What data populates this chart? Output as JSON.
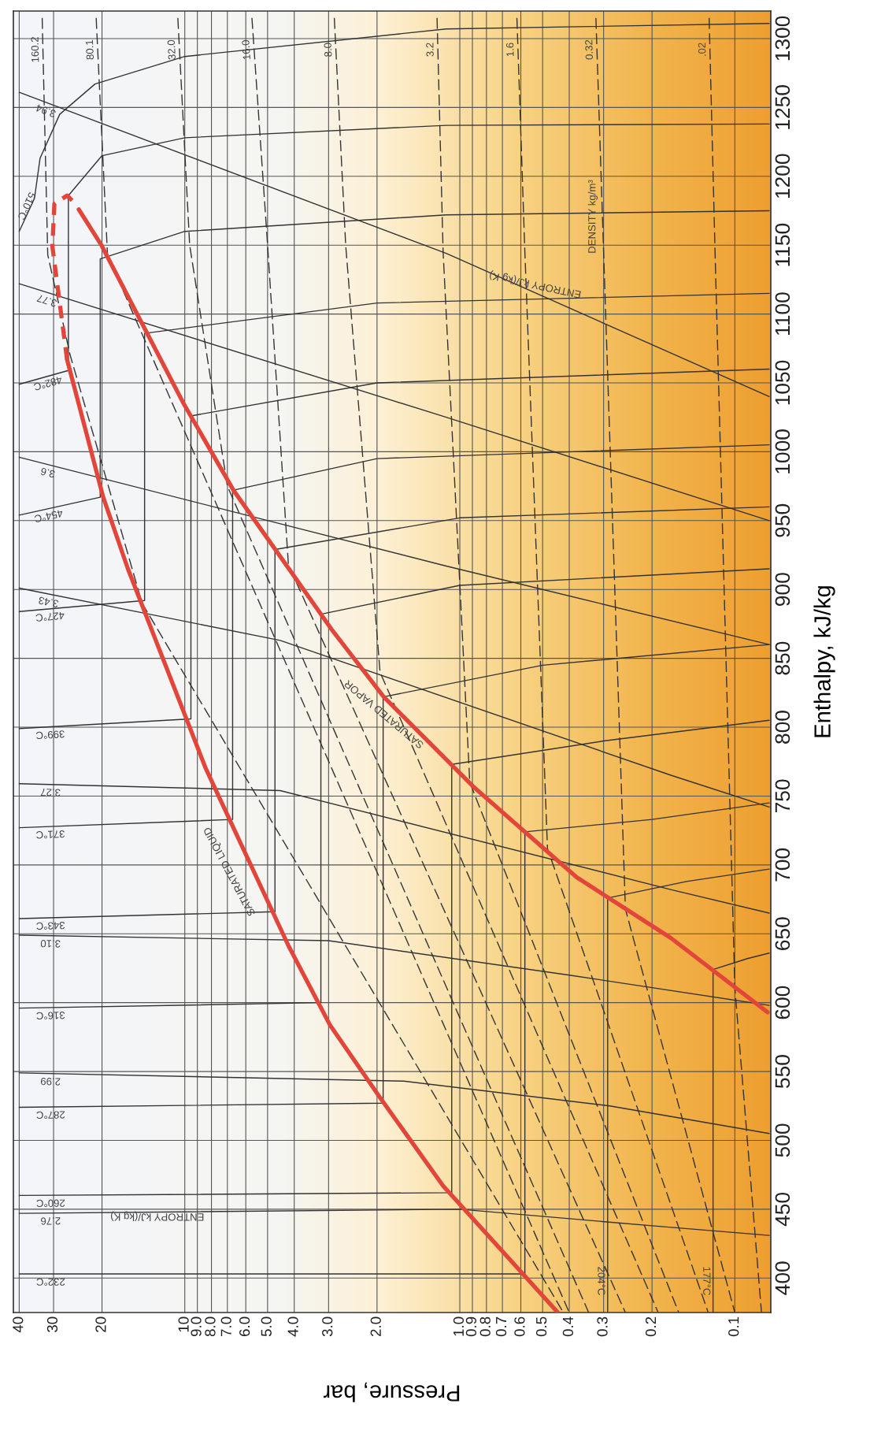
{
  "chart_data": {
    "type": "line",
    "xlabel": "Pressure, bar",
    "ylabel": "Enthalpy, kJ/kg",
    "log": "x",
    "grid": true,
    "xlim": [
      42,
      0.074
    ],
    "ylim": [
      375,
      1320
    ],
    "xticks": [
      40,
      30,
      20,
      10,
      {
        "value": 9,
        "label": "9.0"
      },
      {
        "value": 8,
        "label": "8.0"
      },
      {
        "value": 7,
        "label": "7.0"
      },
      {
        "value": 6,
        "label": "6.0"
      },
      {
        "value": 5,
        "label": "5.0"
      },
      {
        "value": 4,
        "label": "4.0"
      },
      {
        "value": 3,
        "label": "3.0"
      },
      {
        "value": 2,
        "label": "2.0"
      },
      {
        "value": 1,
        "label": "1.0"
      },
      0.9,
      0.8,
      0.7,
      0.6,
      0.5,
      0.4,
      0.3,
      0.2,
      0.1
    ],
    "yticks": [
      400,
      450,
      500,
      550,
      600,
      650,
      700,
      750,
      800,
      850,
      900,
      950,
      1000,
      1050,
      1100,
      1150,
      1200,
      1250,
      1300
    ],
    "series": [
      {
        "color": "#e2453a",
        "line_style": "solid",
        "x": [
          0.44,
          1.15,
          1.95,
          2.97,
          4.19,
          8.39,
          16.1,
          19.8,
          26.8
        ],
        "values": [
          375,
          467,
          531,
          584,
          641,
          770,
          915,
          967,
          1067
        ]
      },
      {
        "color": "#e2453a",
        "line_style": "dashed",
        "x": [
          26.8,
          30.3,
          29.8,
          26.8,
          24.6
        ],
        "values": [
          1067,
          1149,
          1180,
          1186,
          1179
        ]
      },
      {
        "color": "#e2453a",
        "line_style": "solid",
        "x": [
          24.3,
          20.1,
          10.1,
          6.65,
          2.9,
          1.89,
          0.895,
          0.376,
          0.171,
          0.076
        ],
        "values": [
          1176,
          1150,
          1035,
          972,
          870,
          822,
          757,
          691,
          647,
          593
        ]
      },
      {
        "name": "232°C",
        "color": "#333333",
        "line_style": "solid",
        "x": [
          40,
          0.58,
          0.58,
          0.2,
          0.075
        ],
        "values": [
          403,
          403,
          724,
          733,
          745
        ]
      },
      {
        "name": "260°C",
        "color": "#333333",
        "line_style": "solid",
        "x": [
          40,
          1.07,
          1.07,
          0.3,
          0.075
        ],
        "values": [
          460,
          462,
          773,
          790,
          805
        ]
      },
      {
        "name": "287°C",
        "color": "#333333",
        "line_style": "solid",
        "x": [
          40,
          1.9,
          1.9,
          0.5,
          0.075
        ],
        "values": [
          524,
          527,
          822,
          845,
          860
        ]
      },
      {
        "name": "316°C",
        "color": "#333333",
        "line_style": "solid",
        "x": [
          40,
          3.2,
          3.2,
          1.0,
          0.075
        ],
        "values": [
          596,
          600,
          882,
          903,
          915
        ]
      },
      {
        "name": "343°C",
        "color": "#333333",
        "line_style": "solid",
        "x": [
          40,
          4.7,
          4.7,
          1.0,
          0.075
        ],
        "values": [
          661,
          666,
          929,
          952,
          960
        ]
      },
      {
        "name": "371°C",
        "color": "#333333",
        "line_style": "solid",
        "x": [
          40,
          6.7,
          6.7,
          2.0,
          0.075
        ],
        "values": [
          727,
          733,
          972,
          995,
          1005
        ]
      },
      {
        "name": "399°C",
        "color": "#333333",
        "line_style": "solid",
        "x": [
          40,
          9.5,
          9.5,
          2.0,
          0.075
        ],
        "values": [
          799,
          806,
          1026,
          1050,
          1060
        ]
      },
      {
        "name": "427°C",
        "color": "#333333",
        "line_style": "solid",
        "x": [
          40,
          14,
          14,
          2.0,
          0.075
        ],
        "values": [
          884,
          892,
          1086,
          1108,
          1115
        ]
      },
      {
        "name": "454°C",
        "color": "#333333",
        "line_style": "solid",
        "x": [
          40,
          20.3,
          20.3,
          10,
          1.12,
          0.075
        ],
        "values": [
          954,
          967,
          1140,
          1160,
          1172,
          1175
        ]
      },
      {
        "name": "482°C",
        "color": "#333333",
        "line_style": "solid",
        "x": [
          40,
          26.5,
          26.5,
          20,
          10,
          1.12,
          0.075
        ],
        "values": [
          1049,
          1059,
          1186,
          1215,
          1228,
          1237,
          1238
        ]
      },
      {
        "name": "510°C",
        "color": "#333333",
        "line_style": "solid",
        "x": [
          40,
          35.2,
          33.6,
          28.5,
          21.2,
          10,
          1.12,
          0.075
        ],
        "values": [
          1160,
          1184,
          1213,
          1245,
          1267,
          1287,
          1307,
          1311
        ]
      },
      {
        "name": "204°C",
        "color": "#333333",
        "line_style": "solid",
        "x": [
          0.29,
          0.29,
          0.15,
          0.075
        ],
        "values": [
          375,
          676,
          688,
          697
        ]
      },
      {
        "name": "177°C",
        "color": "#333333",
        "line_style": "solid",
        "x": [
          0.12,
          0.12,
          0.09,
          0.075
        ],
        "values": [
          375,
          624,
          632,
          636
        ]
      },
      {
        "name": "2.76",
        "color": "#333333",
        "line_style": "solid",
        "x": [
          40,
          1.0,
          0.2,
          0.075
        ],
        "values": [
          447,
          450,
          438,
          431
        ]
      },
      {
        "name": "2.99",
        "color": "#333333",
        "line_style": "solid",
        "x": [
          40,
          1.6,
          0.285,
          0.075
        ],
        "values": [
          549,
          543,
          525,
          505
        ]
      },
      {
        "name": "3.10",
        "color": "#333333",
        "line_style": "solid",
        "x": [
          40,
          3.0,
          0.4,
          0.075
        ],
        "values": [
          649,
          645,
          620,
          598
        ]
      },
      {
        "name": "3.27",
        "color": "#333333",
        "line_style": "solid",
        "x": [
          40,
          4.5,
          0.17,
          0.075
        ],
        "values": [
          759,
          754,
          682,
          665
        ]
      },
      {
        "name": "3.43",
        "color": "#333333",
        "line_style": "solid",
        "x": [
          40,
          4.5,
          0.17,
          0.075
        ],
        "values": [
          901,
          863,
          765,
          742
        ]
      },
      {
        "name": "3.6",
        "color": "#333333",
        "line_style": "solid",
        "x": [
          40,
          1.12,
          0.075
        ],
        "values": [
          996,
          917,
          860
        ]
      },
      {
        "name": "3.77",
        "color": "#333333",
        "line_style": "solid",
        "x": [
          40,
          1.12,
          0.075
        ],
        "values": [
          1122,
          1025,
          950
        ]
      },
      {
        "name": "3.94",
        "color": "#333333",
        "line_style": "solid",
        "x": [
          40,
          1.12,
          0.075
        ],
        "values": [
          1261,
          1144,
          1040
        ]
      },
      {
        "name": "160.2",
        "color": "#333333",
        "line_style": "dashed",
        "x": [
          33.0,
          31.5,
          26.1,
          19.8,
          14.3,
          0.42
        ],
        "values": [
          1315,
          1143,
          1070,
          988,
          890,
          375
        ]
      },
      {
        "name": "80.1",
        "color": "#333333",
        "line_style": "dashed",
        "x": [
          21.0,
          19.1,
          0.4
        ],
        "values": [
          1315,
          1143,
          375
        ]
      },
      {
        "name": "32.0",
        "color": "#333333",
        "line_style": "dashed",
        "x": [
          10.6,
          9.6,
          7.0,
          0.34
        ],
        "values": [
          1315,
          1150,
          975,
          375
        ]
      },
      {
        "name": "16.0",
        "color": "#333333",
        "line_style": "dashed",
        "x": [
          5.7,
          5.0,
          4.2,
          0.25
        ],
        "values": [
          1315,
          1150,
          918,
          375
        ]
      },
      {
        "name": "8.0",
        "color": "#333333",
        "line_style": "dashed",
        "x": [
          2.86,
          2.6,
          1.95,
          0.19
        ],
        "values": [
          1315,
          1150,
          840,
          375
        ]
      },
      {
        "name": "3.2",
        "color": "#333333",
        "line_style": "dashed",
        "x": [
          1.21,
          1.15,
          0.92,
          0.16
        ],
        "values": [
          1315,
          1145,
          760,
          375
        ]
      },
      {
        "name": "1.6",
        "color": "#333333",
        "line_style": "dashed",
        "x": [
          0.62,
          0.58,
          0.48,
          0.125
        ],
        "values": [
          1315,
          1145,
          712,
          375
        ]
      },
      {
        "name": "0.32",
        "color": "#333333",
        "line_style": "dashed",
        "x": [
          0.32,
          0.3,
          0.25,
          0.1
        ],
        "values": [
          1315,
          1145,
          668,
          375
        ]
      },
      {
        "name": ".02",
        "color": "#333333",
        "line_style": "dashed",
        "x": [
          0.124,
          0.118,
          0.1,
          0.08
        ],
        "values": [
          1315,
          1145,
          611,
          375
        ]
      }
    ],
    "annotations": [
      "SATURATED LIQUID",
      "SATURATED VAPOR",
      "ENTROPY kJ/(kg K)",
      "ENTROPY kJ/(kg K)",
      "DENSITY kg/m³"
    ]
  }
}
